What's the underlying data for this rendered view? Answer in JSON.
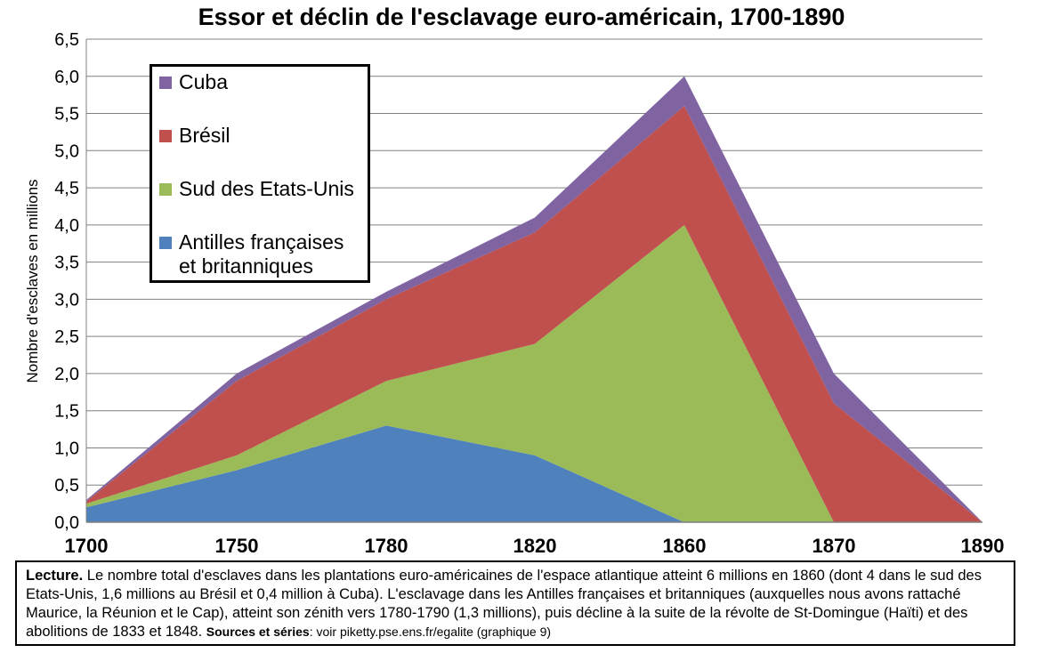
{
  "chart_data": {
    "type": "area",
    "stacked": true,
    "title": "Essor et déclin de l'esclavage euro-américain, 1700-1890",
    "ylabel": "Nombre d'esclaves en millions",
    "xlabel": "",
    "categories": [
      "1700",
      "1750",
      "1780",
      "1820",
      "1860",
      "1870",
      "1890"
    ],
    "ylim": [
      0,
      6.5
    ],
    "yticks": [
      "0,0",
      "0,5",
      "1,0",
      "1,5",
      "2,0",
      "2,5",
      "3,0",
      "3,5",
      "4,0",
      "4,5",
      "5,0",
      "5,5",
      "6,0",
      "6,5"
    ],
    "grid": true,
    "legend_position": "top-left",
    "series": [
      {
        "name": "Antilles françaises et britanniques",
        "color": "#4f81bd",
        "values": [
          0.2,
          0.7,
          1.3,
          0.9,
          0.0,
          0.0,
          0.0
        ]
      },
      {
        "name": "Sud des Etats-Unis",
        "color": "#9bbb59",
        "values": [
          0.05,
          0.2,
          0.6,
          1.5,
          4.0,
          0.0,
          0.0
        ]
      },
      {
        "name": "Brésil",
        "color": "#c0504d",
        "values": [
          0.03,
          1.0,
          1.1,
          1.5,
          1.6,
          1.6,
          0.0
        ]
      },
      {
        "name": "Cuba",
        "color": "#8064a2",
        "values": [
          0.02,
          0.1,
          0.1,
          0.2,
          0.4,
          0.4,
          0.0
        ]
      }
    ]
  },
  "legend": {
    "items": [
      {
        "label": "Cuba",
        "color": "#8064a2"
      },
      {
        "label": "Brésil",
        "color": "#c0504d"
      },
      {
        "label": "Sud des Etats-Unis",
        "color": "#9bbb59"
      },
      {
        "label": "Antilles françaises\net britanniques",
        "color": "#4f81bd"
      }
    ]
  },
  "caption": {
    "lead": "Lecture.",
    "text": " Le nombre total d'esclaves dans les plantations euro-américaines de l'espace atlantique atteint 6 millions en 1860 (dont 4 dans le sud des Etats-Unis, 1,6 millions au Brésil et 0,4 million à Cuba). L'esclavage dans les Antilles françaises et britanniques (auxquelles nous avons rattaché Maurice, la Réunion et le Cap), atteint son zénith vers 1780-1790 (1,3 millions), puis décline à la suite de la révolte de St-Domingue (Haïti) et des abolitions de 1833 et 1848. ",
    "sources_label": "Sources et séries",
    "sources_text": ": voir piketty.pse.ens.fr/egalite (graphique 9)"
  }
}
